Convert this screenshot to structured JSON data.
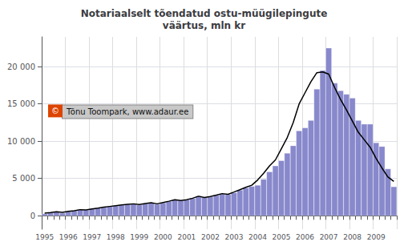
{
  "chart_data": {
    "type": "bar",
    "title": "Notariaalselt tõendatud ostu-müügilepingute\nväärtus, mln kr",
    "categories": [
      1995,
      null,
      null,
      null,
      1996,
      null,
      null,
      null,
      1997,
      null,
      null,
      null,
      1998,
      null,
      null,
      null,
      1999,
      null,
      null,
      null,
      2000,
      null,
      null,
      null,
      2001,
      null,
      null,
      null,
      2002,
      null,
      null,
      null,
      2003,
      null,
      null,
      null,
      2004,
      null,
      null,
      null,
      2005,
      null,
      null,
      null,
      2006,
      null,
      null,
      null,
      2007,
      null,
      null,
      null,
      2008,
      null,
      null,
      null,
      2009,
      null,
      null,
      null
    ],
    "series": [
      {
        "type": "bar",
        "color": "#8888cc",
        "values": [
          280,
          420,
          520,
          380,
          580,
          680,
          850,
          780,
          950,
          1050,
          1150,
          1250,
          1350,
          1450,
          1550,
          1650,
          1450,
          1650,
          1750,
          1550,
          1750,
          1950,
          2150,
          2050,
          2150,
          2350,
          2650,
          2450,
          2550,
          2750,
          2950,
          2850,
          3100,
          3450,
          3750,
          3950,
          4100,
          4900,
          5900,
          6700,
          7400,
          8400,
          9400,
          11400,
          11800,
          12800,
          17000,
          19500,
          22500,
          17800,
          16800,
          16300,
          15800,
          12800,
          12300,
          12300,
          9800,
          9300,
          6300,
          3900
        ]
      },
      {
        "type": "line",
        "color": "#000000",
        "values": [
          350,
          430,
          530,
          450,
          600,
          680,
          820,
          790,
          920,
          1020,
          1150,
          1250,
          1350,
          1450,
          1530,
          1600,
          1500,
          1650,
          1750,
          1600,
          1780,
          1950,
          2150,
          2050,
          2150,
          2350,
          2620,
          2450,
          2570,
          2760,
          2970,
          2870,
          3180,
          3500,
          3820,
          4100,
          4800,
          5700,
          6700,
          7500,
          9000,
          10500,
          12500,
          15000,
          16500,
          18000,
          19200,
          19300,
          19000,
          17200,
          15600,
          14200,
          12700,
          11200,
          10200,
          9200,
          7700,
          6400,
          5200,
          4600
        ]
      }
    ],
    "ylim": [
      -1800,
      24000
    ],
    "yticks": [
      0,
      {
        "value": 5000,
        "label": "5 000"
      },
      {
        "value": 10000,
        "label": "10 000"
      },
      {
        "value": 15000,
        "label": "15 000"
      },
      {
        "value": 20000,
        "label": "20 000"
      }
    ],
    "grid": true,
    "annotations": [
      "©",
      "Tõnu Toompark, www.adaur.ee"
    ]
  }
}
